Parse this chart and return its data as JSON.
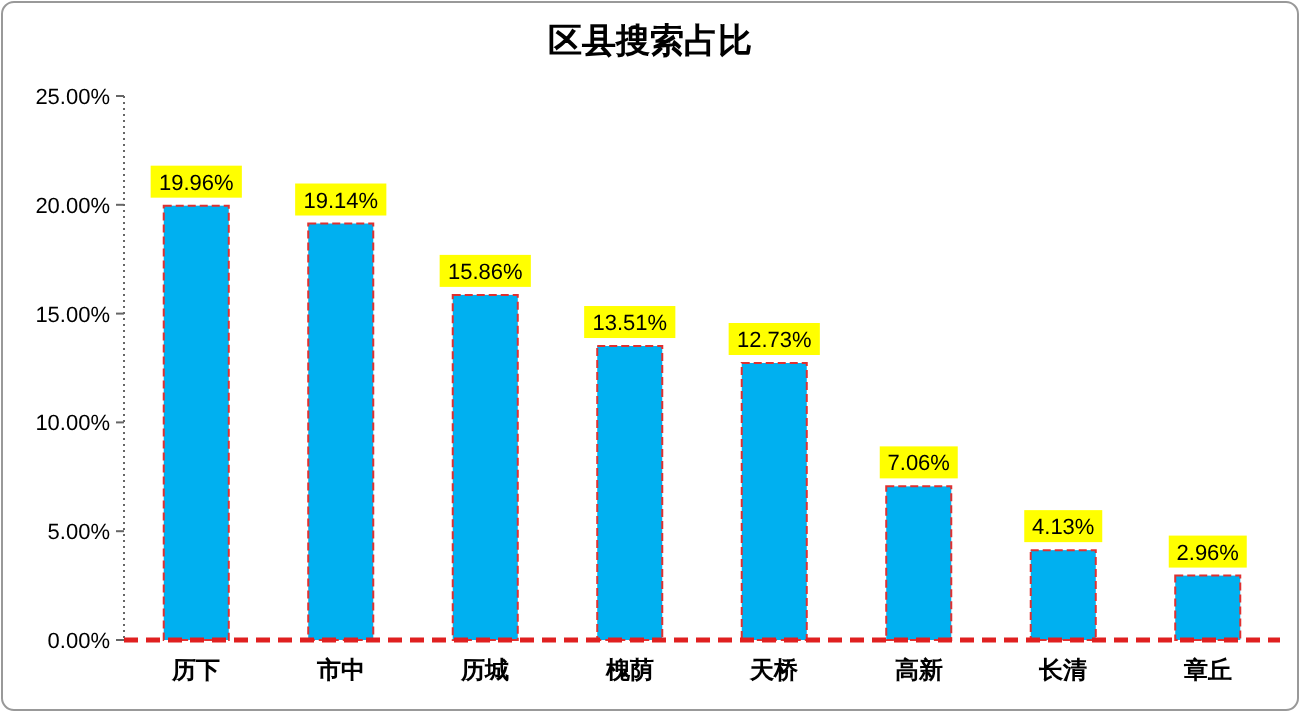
{
  "chart_data": {
    "type": "bar",
    "title": "区县搜索占比",
    "categories": [
      "历下",
      "市中",
      "历城",
      "槐荫",
      "天桥",
      "高新",
      "长清",
      "章丘"
    ],
    "series": [
      {
        "color": "#00b0f0",
        "values": [
          19.96,
          19.14,
          15.86,
          13.51,
          12.73,
          7.06,
          4.13,
          2.96
        ],
        "value_labels": [
          "19.96%",
          "19.14%",
          "15.86%",
          "13.51%",
          "12.73%",
          "7.06%",
          "4.13%",
          "2.96%"
        ]
      }
    ],
    "ylim": [
      0,
      25
    ],
    "yticks": [
      {
        "value": 0,
        "label": "0.00%"
      },
      {
        "value": 5,
        "label": "5.00%"
      },
      {
        "value": 10,
        "label": "10.00%"
      },
      {
        "value": 15,
        "label": "15.00%"
      },
      {
        "value": 20,
        "label": "20.00%"
      },
      {
        "value": 25,
        "label": "25.00%"
      }
    ],
    "grid": false
  }
}
